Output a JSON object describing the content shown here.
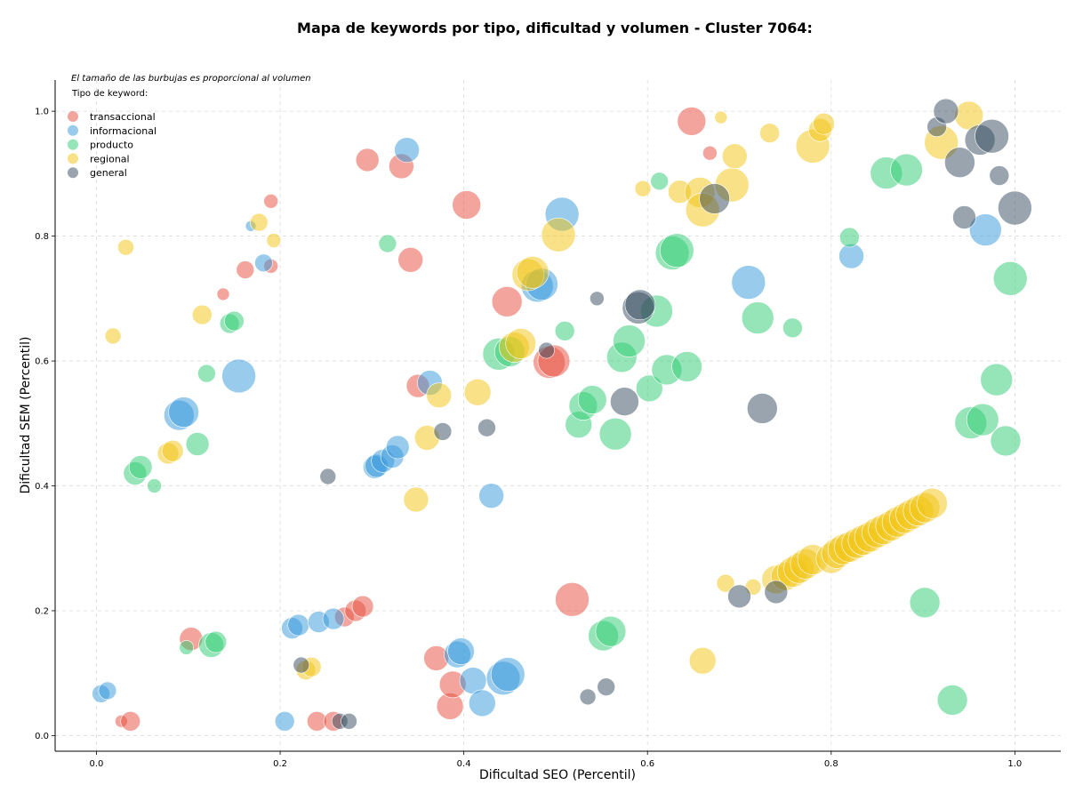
{
  "chart_data": {
    "type": "scatter",
    "title": "Mapa de keywords por tipo, dificultad y volumen - Cluster 7064:",
    "xlabel": "Dificultad SEO (Percentil)",
    "ylabel": "Dificultad SEM (Percentil)",
    "note": "El tamaño de las burbujas es proporcional al volumen",
    "xlim": [
      -0.045,
      1.05
    ],
    "ylim": [
      -0.025,
      1.05
    ],
    "xticks": [
      "0.0",
      "0.2",
      "0.4",
      "0.6",
      "0.8",
      "1.0"
    ],
    "yticks": [
      "0.0",
      "0.2",
      "0.4",
      "0.6",
      "0.8",
      "1.0"
    ],
    "grid": true,
    "legend": {
      "title": "Tipo de keyword:",
      "position": "top-left",
      "items": [
        {
          "key": "transaccional",
          "label": "transaccional",
          "color": "#e74c3c"
        },
        {
          "key": "informacional",
          "label": "informacional",
          "color": "#3498db"
        },
        {
          "key": "producto",
          "label": "producto",
          "color": "#2ecc71"
        },
        {
          "key": "regional",
          "label": "regional",
          "color": "#f1c40f"
        },
        {
          "key": "general",
          "label": "general",
          "color": "#34495e"
        }
      ]
    },
    "series": [
      {
        "name": "transaccional",
        "color": "#e74c3c",
        "points": [
          [
            0.027,
            0.023,
            7
          ],
          [
            0.037,
            0.023,
            11
          ],
          [
            0.103,
            0.155,
            13
          ],
          [
            0.138,
            0.707,
            7
          ],
          [
            0.162,
            0.746,
            10
          ],
          [
            0.19,
            0.856,
            8
          ],
          [
            0.19,
            0.752,
            8
          ],
          [
            0.295,
            0.922,
            13
          ],
          [
            0.332,
            0.912,
            14
          ],
          [
            0.342,
            0.762,
            14
          ],
          [
            0.35,
            0.56,
            13
          ],
          [
            0.37,
            0.124,
            14
          ],
          [
            0.385,
            0.047,
            15
          ],
          [
            0.388,
            0.082,
            15
          ],
          [
            0.403,
            0.85,
            16
          ],
          [
            0.447,
            0.695,
            17
          ],
          [
            0.493,
            0.598,
            18
          ],
          [
            0.498,
            0.6,
            18
          ],
          [
            0.518,
            0.218,
            19
          ],
          [
            0.648,
            0.984,
            16
          ],
          [
            0.668,
            0.933,
            8
          ],
          [
            0.24,
            0.023,
            11
          ],
          [
            0.258,
            0.023,
            11
          ],
          [
            0.27,
            0.19,
            11
          ],
          [
            0.282,
            0.2,
            12
          ],
          [
            0.29,
            0.207,
            12
          ]
        ]
      },
      {
        "name": "informacional",
        "color": "#3498db",
        "points": [
          [
            0.005,
            0.067,
            10
          ],
          [
            0.012,
            0.072,
            10
          ],
          [
            0.09,
            0.513,
            17
          ],
          [
            0.095,
            0.518,
            17
          ],
          [
            0.155,
            0.576,
            19
          ],
          [
            0.168,
            0.816,
            6
          ],
          [
            0.182,
            0.757,
            10
          ],
          [
            0.205,
            0.023,
            11
          ],
          [
            0.213,
            0.172,
            12
          ],
          [
            0.22,
            0.177,
            12
          ],
          [
            0.242,
            0.182,
            12
          ],
          [
            0.258,
            0.187,
            12
          ],
          [
            0.303,
            0.43,
            13
          ],
          [
            0.305,
            0.432,
            13
          ],
          [
            0.312,
            0.44,
            13
          ],
          [
            0.322,
            0.447,
            13
          ],
          [
            0.328,
            0.462,
            13
          ],
          [
            0.338,
            0.938,
            14
          ],
          [
            0.363,
            0.565,
            14
          ],
          [
            0.393,
            0.13,
            15
          ],
          [
            0.397,
            0.135,
            15
          ],
          [
            0.41,
            0.088,
            15
          ],
          [
            0.42,
            0.052,
            15
          ],
          [
            0.43,
            0.384,
            14
          ],
          [
            0.443,
            0.092,
            19
          ],
          [
            0.448,
            0.098,
            19
          ],
          [
            0.48,
            0.72,
            18
          ],
          [
            0.485,
            0.723,
            18
          ],
          [
            0.507,
            0.835,
            19
          ],
          [
            0.71,
            0.726,
            19
          ],
          [
            0.822,
            0.768,
            14
          ],
          [
            0.968,
            0.81,
            18
          ]
        ]
      },
      {
        "name": "producto",
        "color": "#2ecc71",
        "points": [
          [
            0.042,
            0.42,
            13
          ],
          [
            0.048,
            0.43,
            13
          ],
          [
            0.063,
            0.4,
            8
          ],
          [
            0.098,
            0.141,
            8
          ],
          [
            0.11,
            0.467,
            13
          ],
          [
            0.12,
            0.58,
            10
          ],
          [
            0.125,
            0.145,
            14
          ],
          [
            0.13,
            0.15,
            12
          ],
          [
            0.145,
            0.66,
            11
          ],
          [
            0.15,
            0.664,
            11
          ],
          [
            0.317,
            0.788,
            10
          ],
          [
            0.438,
            0.611,
            18
          ],
          [
            0.45,
            0.615,
            17
          ],
          [
            0.51,
            0.648,
            11
          ],
          [
            0.525,
            0.498,
            15
          ],
          [
            0.53,
            0.528,
            16
          ],
          [
            0.54,
            0.538,
            16
          ],
          [
            0.552,
            0.16,
            17
          ],
          [
            0.56,
            0.167,
            17
          ],
          [
            0.565,
            0.483,
            18
          ],
          [
            0.572,
            0.606,
            17
          ],
          [
            0.58,
            0.632,
            18
          ],
          [
            0.602,
            0.556,
            15
          ],
          [
            0.61,
            0.68,
            18
          ],
          [
            0.613,
            0.888,
            10
          ],
          [
            0.621,
            0.586,
            17
          ],
          [
            0.627,
            0.773,
            19
          ],
          [
            0.632,
            0.777,
            19
          ],
          [
            0.643,
            0.591,
            17
          ],
          [
            0.72,
            0.669,
            18
          ],
          [
            0.758,
            0.653,
            11
          ],
          [
            0.82,
            0.798,
            11
          ],
          [
            0.86,
            0.901,
            18
          ],
          [
            0.882,
            0.906,
            18
          ],
          [
            0.902,
            0.213,
            17
          ],
          [
            0.932,
            0.057,
            17
          ],
          [
            0.952,
            0.501,
            18
          ],
          [
            0.965,
            0.506,
            18
          ],
          [
            0.98,
            0.57,
            18
          ],
          [
            0.99,
            0.472,
            17
          ],
          [
            0.995,
            0.732,
            19
          ]
        ]
      },
      {
        "name": "regional",
        "color": "#f1c40f",
        "points": [
          [
            0.018,
            0.64,
            9
          ],
          [
            0.032,
            0.782,
            9
          ],
          [
            0.078,
            0.452,
            12
          ],
          [
            0.083,
            0.456,
            12
          ],
          [
            0.115,
            0.674,
            11
          ],
          [
            0.177,
            0.822,
            10
          ],
          [
            0.193,
            0.793,
            8
          ],
          [
            0.228,
            0.105,
            11
          ],
          [
            0.234,
            0.11,
            11
          ],
          [
            0.348,
            0.378,
            14
          ],
          [
            0.36,
            0.477,
            14
          ],
          [
            0.373,
            0.545,
            14
          ],
          [
            0.415,
            0.55,
            15
          ],
          [
            0.455,
            0.622,
            17
          ],
          [
            0.462,
            0.628,
            17
          ],
          [
            0.47,
            0.738,
            18
          ],
          [
            0.475,
            0.742,
            18
          ],
          [
            0.503,
            0.802,
            19
          ],
          [
            0.595,
            0.876,
            9
          ],
          [
            0.635,
            0.871,
            13
          ],
          [
            0.657,
            0.87,
            17
          ],
          [
            0.66,
            0.842,
            19
          ],
          [
            0.66,
            0.12,
            15
          ],
          [
            0.68,
            0.99,
            7
          ],
          [
            0.685,
            0.244,
            10
          ],
          [
            0.692,
            0.882,
            19
          ],
          [
            0.695,
            0.928,
            14
          ],
          [
            0.715,
            0.238,
            9
          ],
          [
            0.733,
            0.965,
            11
          ],
          [
            0.74,
            0.25,
            16
          ],
          [
            0.75,
            0.255,
            16
          ],
          [
            0.758,
            0.262,
            17
          ],
          [
            0.765,
            0.268,
            17
          ],
          [
            0.772,
            0.275,
            17
          ],
          [
            0.78,
            0.282,
            17
          ],
          [
            0.78,
            0.944,
            19
          ],
          [
            0.788,
            0.97,
            13
          ],
          [
            0.792,
            0.98,
            12
          ],
          [
            0.8,
            0.284,
            17
          ],
          [
            0.806,
            0.292,
            17
          ],
          [
            0.813,
            0.298,
            17
          ],
          [
            0.82,
            0.302,
            17
          ],
          [
            0.828,
            0.308,
            17
          ],
          [
            0.835,
            0.313,
            17
          ],
          [
            0.842,
            0.318,
            17
          ],
          [
            0.85,
            0.325,
            17
          ],
          [
            0.857,
            0.33,
            17
          ],
          [
            0.865,
            0.336,
            17
          ],
          [
            0.872,
            0.342,
            17
          ],
          [
            0.88,
            0.348,
            17
          ],
          [
            0.887,
            0.354,
            17
          ],
          [
            0.895,
            0.36,
            17
          ],
          [
            0.902,
            0.365,
            17
          ],
          [
            0.91,
            0.372,
            17
          ],
          [
            0.92,
            0.95,
            19
          ],
          [
            0.95,
            0.993,
            16
          ]
        ]
      },
      {
        "name": "general",
        "color": "#34495e",
        "points": [
          [
            0.223,
            0.113,
            9
          ],
          [
            0.252,
            0.415,
            9
          ],
          [
            0.265,
            0.023,
            9
          ],
          [
            0.275,
            0.023,
            9
          ],
          [
            0.377,
            0.487,
            10
          ],
          [
            0.425,
            0.493,
            10
          ],
          [
            0.49,
            0.617,
            9
          ],
          [
            0.535,
            0.062,
            9
          ],
          [
            0.545,
            0.7,
            8
          ],
          [
            0.555,
            0.078,
            10
          ],
          [
            0.575,
            0.535,
            16
          ],
          [
            0.59,
            0.685,
            18
          ],
          [
            0.592,
            0.69,
            17
          ],
          [
            0.673,
            0.86,
            17
          ],
          [
            0.7,
            0.223,
            13
          ],
          [
            0.725,
            0.524,
            17
          ],
          [
            0.74,
            0.23,
            13
          ],
          [
            0.915,
            0.975,
            11
          ],
          [
            0.925,
            1.0,
            14
          ],
          [
            0.94,
            0.918,
            17
          ],
          [
            0.945,
            0.83,
            13
          ],
          [
            0.962,
            0.954,
            17
          ],
          [
            0.975,
            0.96,
            19
          ],
          [
            0.983,
            0.897,
            11
          ],
          [
            1.0,
            0.845,
            19
          ]
        ]
      }
    ]
  }
}
